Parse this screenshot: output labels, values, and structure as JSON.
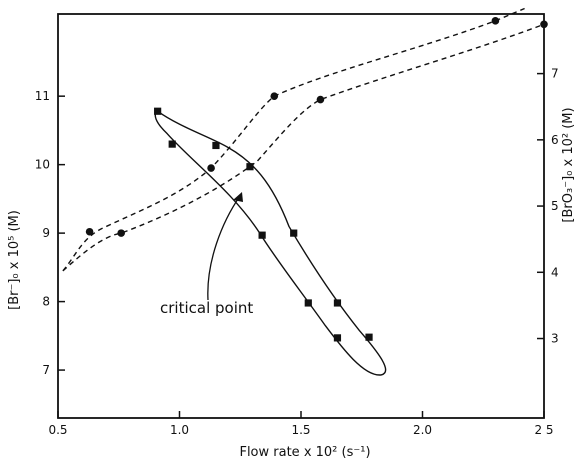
{
  "chart_data": {
    "type": "line",
    "xlabel": "Flow rate  x 10²  (s⁻¹)",
    "ylabel_left": "[Br⁻]₀  x 10⁵ (M)",
    "ylabel_right": "[BrO₃⁻]₀  x 10² (M)",
    "xlim": [
      0.5,
      2.5
    ],
    "ylim_left": [
      6.3,
      12.2
    ],
    "ylim_right": [
      1.8,
      7.9
    ],
    "x_ticks": [
      0.5,
      1.0,
      1.5,
      2.0,
      2.5
    ],
    "x_tick_labels": [
      "0.5",
      "1.0",
      "1.5",
      "2.0",
      "2 5"
    ],
    "y_left_ticks": [
      7,
      8,
      9,
      10,
      11
    ],
    "y_left_tick_labels": [
      "7",
      "8",
      "9",
      "10",
      "11"
    ],
    "y_right_ticks": [
      3,
      4,
      5,
      6,
      7
    ],
    "y_right_tick_labels": [
      "3",
      "4",
      "5",
      "6",
      "7"
    ],
    "grid": false,
    "annotation": {
      "text": "critical point",
      "x": 1.2,
      "y": 9.9
    },
    "series": [
      {
        "axis": "left",
        "style": "solid",
        "marker": "square",
        "points": [
          [
            0.91,
            10.78
          ],
          [
            0.97,
            10.3
          ],
          [
            1.15,
            10.28
          ],
          [
            1.29,
            9.97
          ],
          [
            1.47,
            9.0
          ],
          [
            1.65,
            7.98
          ],
          [
            1.78,
            7.48
          ]
        ]
      },
      {
        "axis": "left",
        "style": "solid",
        "marker": "square",
        "points": [
          [
            1.34,
            8.97
          ],
          [
            1.53,
            7.98
          ],
          [
            1.65,
            7.47
          ]
        ]
      },
      {
        "axis": "left",
        "style": "dashed",
        "marker": "circle",
        "points": [
          [
            0.63,
            9.02
          ],
          [
            1.13,
            9.95
          ],
          [
            1.39,
            11.0
          ],
          [
            2.3,
            12.1
          ]
        ]
      },
      {
        "axis": "left",
        "style": "dashed",
        "marker": "circle",
        "points": [
          [
            0.76,
            9.0
          ],
          [
            1.58,
            10.95
          ],
          [
            2.5,
            12.05
          ]
        ]
      }
    ]
  }
}
